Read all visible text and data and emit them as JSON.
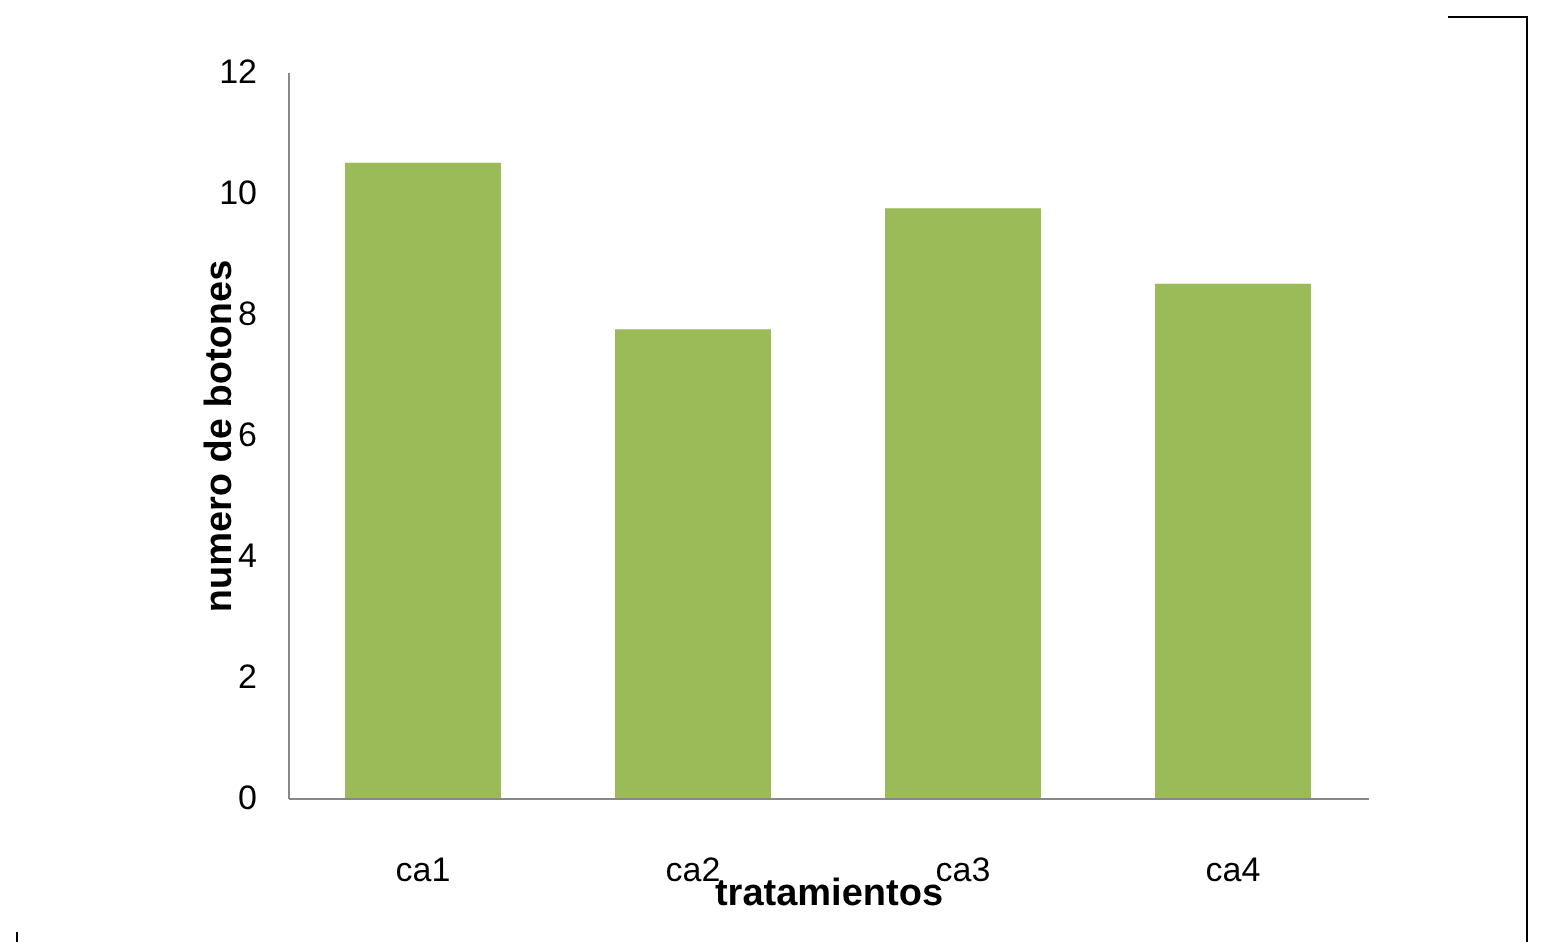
{
  "chart_data": {
    "type": "bar",
    "xlabel": "tratamientos",
    "ylabel": "numero de botones",
    "categories": [
      "ca1",
      "ca2",
      "ca3",
      "ca4"
    ],
    "values": [
      10.5,
      7.75,
      9.75,
      8.5
    ],
    "color": "#9bbb59",
    "ylim": [
      0,
      12
    ],
    "yticks": [
      0,
      2,
      4,
      6,
      8,
      10,
      12
    ],
    "grid": false
  }
}
